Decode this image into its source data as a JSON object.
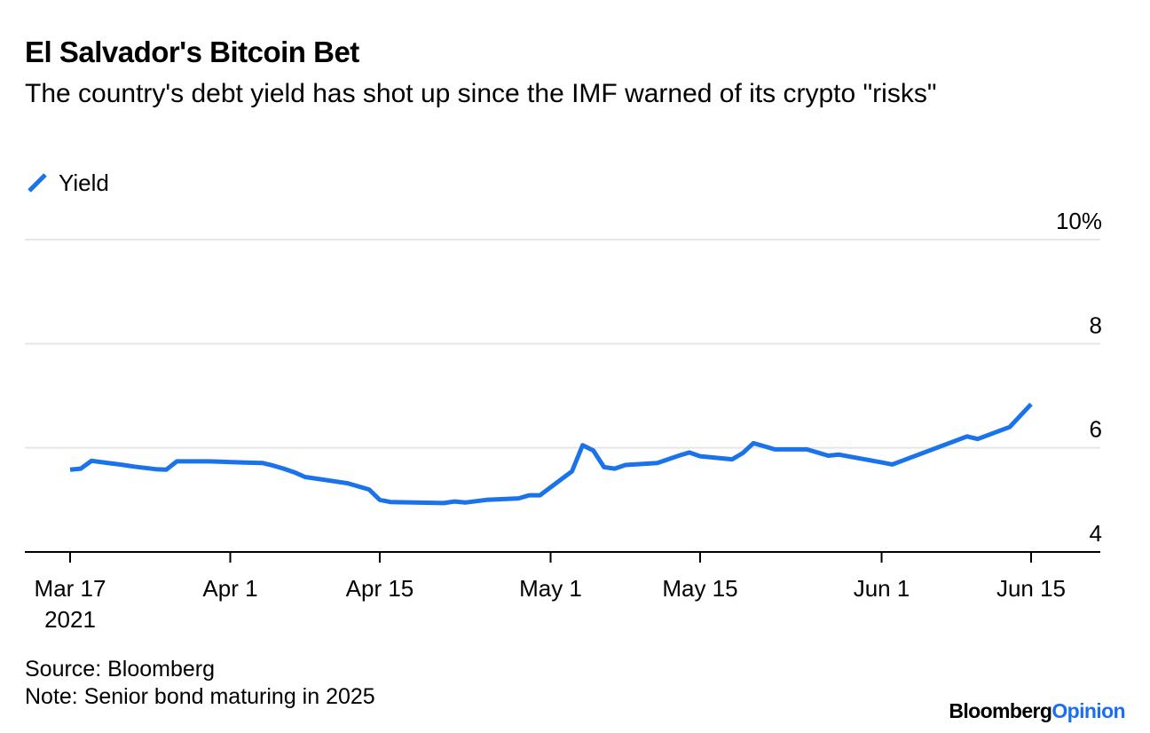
{
  "title": "El Salvador's Bitcoin Bet",
  "subtitle": "The country's debt yield has shot up since the IMF warned of its crypto \"risks\"",
  "legend": {
    "label": "Yield",
    "color": "#1a73e8"
  },
  "source": "Source: Bloomberg",
  "note": "Note: Senior bond maturing in 2025",
  "brand": {
    "part1": "Bloomberg",
    "part2": "Opinion",
    "accent_color": "#1a6ef0"
  },
  "chart_data": {
    "type": "line",
    "title": "El Salvador's Bitcoin Bet",
    "subtitle": "The country's debt yield has shot up since the IMF warned of its crypto \"risks\"",
    "xlabel": "",
    "ylabel": "",
    "x_ticks": [
      {
        "date": "2021-03-17",
        "label": "Mar 17",
        "sublabel": "2021"
      },
      {
        "date": "2021-04-01",
        "label": "Apr 1"
      },
      {
        "date": "2021-04-15",
        "label": "Apr 15"
      },
      {
        "date": "2021-05-01",
        "label": "May 1"
      },
      {
        "date": "2021-05-15",
        "label": "May 15"
      },
      {
        "date": "2021-06-01",
        "label": "Jun 1"
      },
      {
        "date": "2021-06-15",
        "label": "Jun 15"
      }
    ],
    "y_ticks": [
      {
        "value": 4,
        "label": "4"
      },
      {
        "value": 6,
        "label": "6"
      },
      {
        "value": 8,
        "label": "8"
      },
      {
        "value": 10,
        "label": "10%"
      }
    ],
    "xlim": [
      "2021-03-13",
      "2021-06-21"
    ],
    "ylim": [
      4,
      10
    ],
    "grid": "horizontal",
    "legend_position": "top-left",
    "series": [
      {
        "name": "Yield",
        "color": "#1a73e8",
        "points": [
          [
            "2021-03-17",
            5.58
          ],
          [
            "2021-03-18",
            5.6
          ],
          [
            "2021-03-19",
            5.75
          ],
          [
            "2021-03-22",
            5.67
          ],
          [
            "2021-03-23",
            5.64
          ],
          [
            "2021-03-25",
            5.59
          ],
          [
            "2021-03-26",
            5.58
          ],
          [
            "2021-03-27",
            5.74
          ],
          [
            "2021-03-30",
            5.74
          ],
          [
            "2021-04-02",
            5.72
          ],
          [
            "2021-04-04",
            5.71
          ],
          [
            "2021-04-05",
            5.66
          ],
          [
            "2021-04-06",
            5.6
          ],
          [
            "2021-04-07",
            5.53
          ],
          [
            "2021-04-08",
            5.44
          ],
          [
            "2021-04-12",
            5.32
          ],
          [
            "2021-04-13",
            5.26
          ],
          [
            "2021-04-14",
            5.2
          ],
          [
            "2021-04-15",
            5.0
          ],
          [
            "2021-04-16",
            4.96
          ],
          [
            "2021-04-21",
            4.94
          ],
          [
            "2021-04-22",
            4.97
          ],
          [
            "2021-04-23",
            4.95
          ],
          [
            "2021-04-25",
            5.0
          ],
          [
            "2021-04-28",
            5.03
          ],
          [
            "2021-04-29",
            5.09
          ],
          [
            "2021-04-30",
            5.09
          ],
          [
            "2021-05-03",
            5.55
          ],
          [
            "2021-05-04",
            6.05
          ],
          [
            "2021-05-05",
            5.95
          ],
          [
            "2021-05-06",
            5.63
          ],
          [
            "2021-05-07",
            5.6
          ],
          [
            "2021-05-08",
            5.67
          ],
          [
            "2021-05-11",
            5.71
          ],
          [
            "2021-05-13",
            5.85
          ],
          [
            "2021-05-14",
            5.91
          ],
          [
            "2021-05-15",
            5.84
          ],
          [
            "2021-05-18",
            5.78
          ],
          [
            "2021-05-19",
            5.9
          ],
          [
            "2021-05-20",
            6.09
          ],
          [
            "2021-05-22",
            5.97
          ],
          [
            "2021-05-25",
            5.97
          ],
          [
            "2021-05-27",
            5.85
          ],
          [
            "2021-05-28",
            5.87
          ],
          [
            "2021-06-01",
            5.72
          ],
          [
            "2021-06-02",
            5.68
          ],
          [
            "2021-06-09",
            6.22
          ],
          [
            "2021-06-10",
            6.17
          ],
          [
            "2021-06-13",
            6.4
          ],
          [
            "2021-06-15",
            6.84
          ]
        ]
      }
    ]
  }
}
